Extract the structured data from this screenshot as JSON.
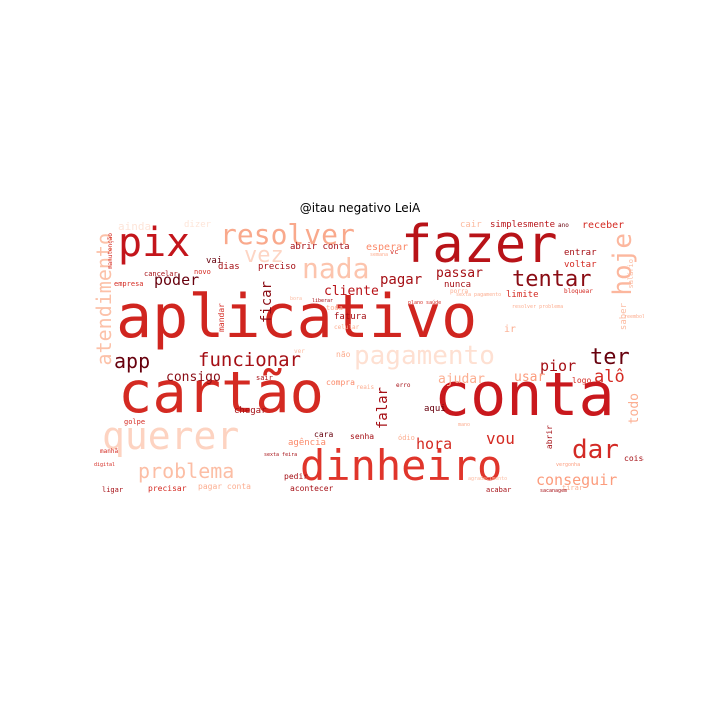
{
  "title": "@itau negativo LeiA",
  "words": [
    {
      "text": "aplicativo",
      "color": "#d0251f"
    },
    {
      "text": "cartão",
      "color": "#d42a22"
    },
    {
      "text": "conta",
      "color": "#c9181d"
    },
    {
      "text": "fazer",
      "color": "#b81318"
    },
    {
      "text": "dinheiro",
      "color": "#e0352b"
    },
    {
      "text": "querer",
      "color": "#fdd3c1"
    },
    {
      "text": "pix",
      "color": "#c3151b"
    },
    {
      "text": "resolver",
      "color": "#f9a98c"
    },
    {
      "text": "hoje",
      "color": "#fcb79e"
    },
    {
      "text": "nada",
      "color": "#fcc4ad"
    },
    {
      "text": "pagamento",
      "color": "#fee0d2"
    },
    {
      "text": "tentar",
      "color": "#8a0c14"
    },
    {
      "text": "funcionar",
      "color": "#a50f15"
    },
    {
      "text": "app",
      "color": "#67000d"
    },
    {
      "text": "ter",
      "color": "#67000d"
    },
    {
      "text": "dar",
      "color": "#d32a25"
    },
    {
      "text": "problema",
      "color": "#fcbea5"
    },
    {
      "text": "atendimento",
      "color": "#fcc1a8"
    },
    {
      "text": "vez",
      "color": "#fdd5c4"
    },
    {
      "text": "falar",
      "color": "#a50f15"
    },
    {
      "text": "vou",
      "color": "#d42a22"
    },
    {
      "text": "conseguir",
      "color": "#fc9c7d"
    },
    {
      "text": "hora",
      "color": "#d42a22"
    },
    {
      "text": "ficar",
      "color": "#8a0c14"
    },
    {
      "text": "pagar",
      "color": "#a50f15"
    },
    {
      "text": "passar",
      "color": "#a50f15"
    },
    {
      "text": "cliente",
      "color": "#b81318"
    },
    {
      "text": "poder",
      "color": "#67000d"
    },
    {
      "text": "consigo",
      "color": "#8a0c14"
    },
    {
      "text": "pior",
      "color": "#a50f15"
    },
    {
      "text": "alô",
      "color": "#d42a22"
    },
    {
      "text": "ajudar",
      "color": "#fcae91"
    },
    {
      "text": "usar",
      "color": "#fc9c7d"
    },
    {
      "text": "todo",
      "color": "#fcae91"
    },
    {
      "text": "ainda",
      "color": "#fee5d9"
    },
    {
      "text": "dizer",
      "color": "#fee5d9"
    },
    {
      "text": "cair",
      "color": "#fcbba1"
    },
    {
      "text": "simplesmente",
      "color": "#b81318"
    },
    {
      "text": "ano",
      "color": "#67000d"
    },
    {
      "text": "receber",
      "color": "#d42a22"
    },
    {
      "text": "abrir conta",
      "color": "#a50f15"
    },
    {
      "text": "esperar",
      "color": "#fb8a6a"
    },
    {
      "text": "entrar",
      "color": "#a50f15"
    },
    {
      "text": "voltar",
      "color": "#d42a22"
    },
    {
      "text": "limite",
      "color": "#d42a22"
    },
    {
      "text": "preciso",
      "color": "#a50f15"
    },
    {
      "text": "vai",
      "color": "#67000d"
    },
    {
      "text": "dias",
      "color": "#a50f15"
    },
    {
      "text": "cancelar",
      "color": "#a50f15"
    },
    {
      "text": "novo",
      "color": "#d42a22"
    },
    {
      "text": "empresa",
      "color": "#d42a22"
    },
    {
      "text": "nunca",
      "color": "#a50f15"
    },
    {
      "text": "saber",
      "color": "#fcbba1"
    },
    {
      "text": "fatura",
      "color": "#a50f15"
    },
    {
      "text": "celular",
      "color": "#fcae91"
    },
    {
      "text": "compra",
      "color": "#fb8a6a"
    },
    {
      "text": "mandar",
      "color": "#d42a22"
    },
    {
      "text": "chegar",
      "color": "#a50f15"
    },
    {
      "text": "cara",
      "color": "#67000d"
    },
    {
      "text": "senha",
      "color": "#a50f15"
    },
    {
      "text": "agência",
      "color": "#fb8a6a"
    },
    {
      "text": "aqui",
      "color": "#67000d"
    },
    {
      "text": "coisa",
      "color": "#a50f15"
    },
    {
      "text": "precisar",
      "color": "#d42a22"
    },
    {
      "text": "pagar conta",
      "color": "#fcae91"
    },
    {
      "text": "pedir",
      "color": "#a50f15"
    },
    {
      "text": "acontecer",
      "color": "#a50f15"
    },
    {
      "text": "acabar",
      "color": "#a50f15"
    },
    {
      "text": "tirar",
      "color": "#fcae91"
    },
    {
      "text": "ligar",
      "color": "#a50f15"
    },
    {
      "text": "golpe",
      "color": "#d42a22"
    },
    {
      "text": "manhã",
      "color": "#d42a22"
    },
    {
      "text": "sair",
      "color": "#a50f15"
    },
    {
      "text": "logo",
      "color": "#d42a22"
    },
    {
      "text": "ir",
      "color": "#fcae91"
    },
    {
      "text": "abrir",
      "color": "#a50f15"
    },
    {
      "text": "reais",
      "color": "#fcae91"
    },
    {
      "text": "erro",
      "color": "#a50f15"
    },
    {
      "text": "ódio",
      "color": "#fcae91"
    },
    {
      "text": "não",
      "color": "#fcae91"
    },
    {
      "text": "toda",
      "color": "#fcae91"
    },
    {
      "text": "bloquear",
      "color": "#d42a22"
    },
    {
      "text": "salário",
      "color": "#fcbba1"
    },
    {
      "text": "manutenção",
      "color": "#d42a22"
    },
    {
      "text": "semana",
      "color": "#fcae91"
    },
    {
      "text": "digital",
      "color": "#d42a22"
    },
    {
      "text": "vergonha",
      "color": "#fc9c7d"
    },
    {
      "text": "agradecimento",
      "color": "#fcbba1"
    },
    {
      "text": "sacanagem",
      "color": "#a50f15"
    },
    {
      "text": "sexta feira",
      "color": "#a50f15"
    },
    {
      "text": "plano saúde",
      "color": "#d42a22"
    },
    {
      "text": "resolver problema",
      "color": "#fcae91"
    },
    {
      "text": "sexta pagamento",
      "color": "#fcae91"
    },
    {
      "text": "liberar",
      "color": "#a50f15"
    },
    {
      "text": "bora",
      "color": "#fcbba1"
    },
    {
      "text": "mano",
      "color": "#fcae91"
    },
    {
      "text": "porra",
      "color": "#fcae91"
    },
    {
      "text": "reembolso",
      "color": "#fcae91"
    },
    {
      "text": "vc",
      "color": "#d42a22"
    },
    {
      "text": "ver",
      "color": "#fcbba1"
    }
  ]
}
